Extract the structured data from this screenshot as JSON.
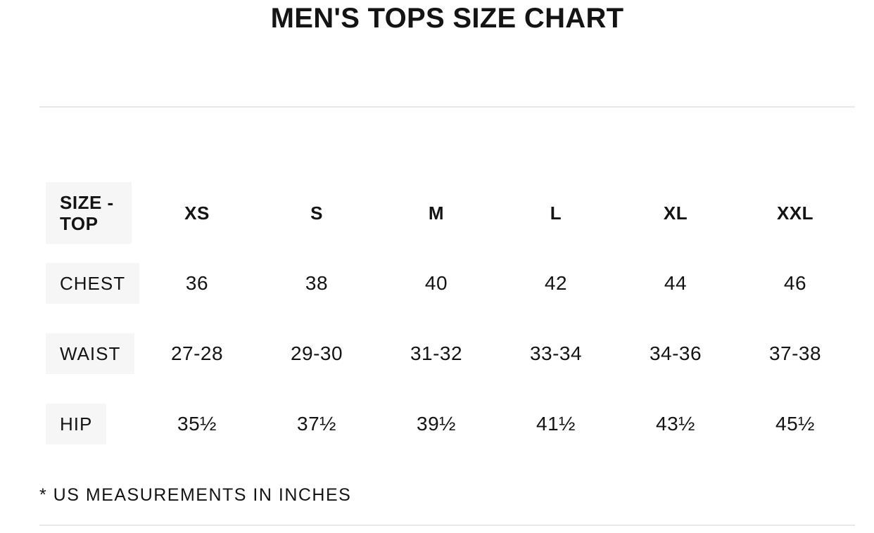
{
  "page": {
    "title": "MEN'S TOPS SIZE CHART",
    "footnote": "* US MEASUREMENTS IN INCHES"
  },
  "colors": {
    "text": "#141414",
    "label_box_background": "#f6f6f6",
    "divider": "#e9e9e9",
    "page_background": "#ffffff"
  },
  "chart_data": {
    "type": "table",
    "title": "MEN'S TOPS SIZE CHART",
    "columns": [
      "SIZE - TOP",
      "XS",
      "S",
      "M",
      "L",
      "XL",
      "XXL"
    ],
    "rows": [
      [
        "CHEST",
        "36",
        "38",
        "40",
        "42",
        "44",
        "46"
      ],
      [
        "WAIST",
        "27-28",
        "29-30",
        "31-32",
        "33-34",
        "34-36",
        "37-38"
      ],
      [
        "HIP",
        "35½",
        "37½",
        "39½",
        "41½",
        "43½",
        "45½"
      ]
    ],
    "footnote": "* US MEASUREMENTS IN INCHES",
    "units": "inches (US)"
  }
}
